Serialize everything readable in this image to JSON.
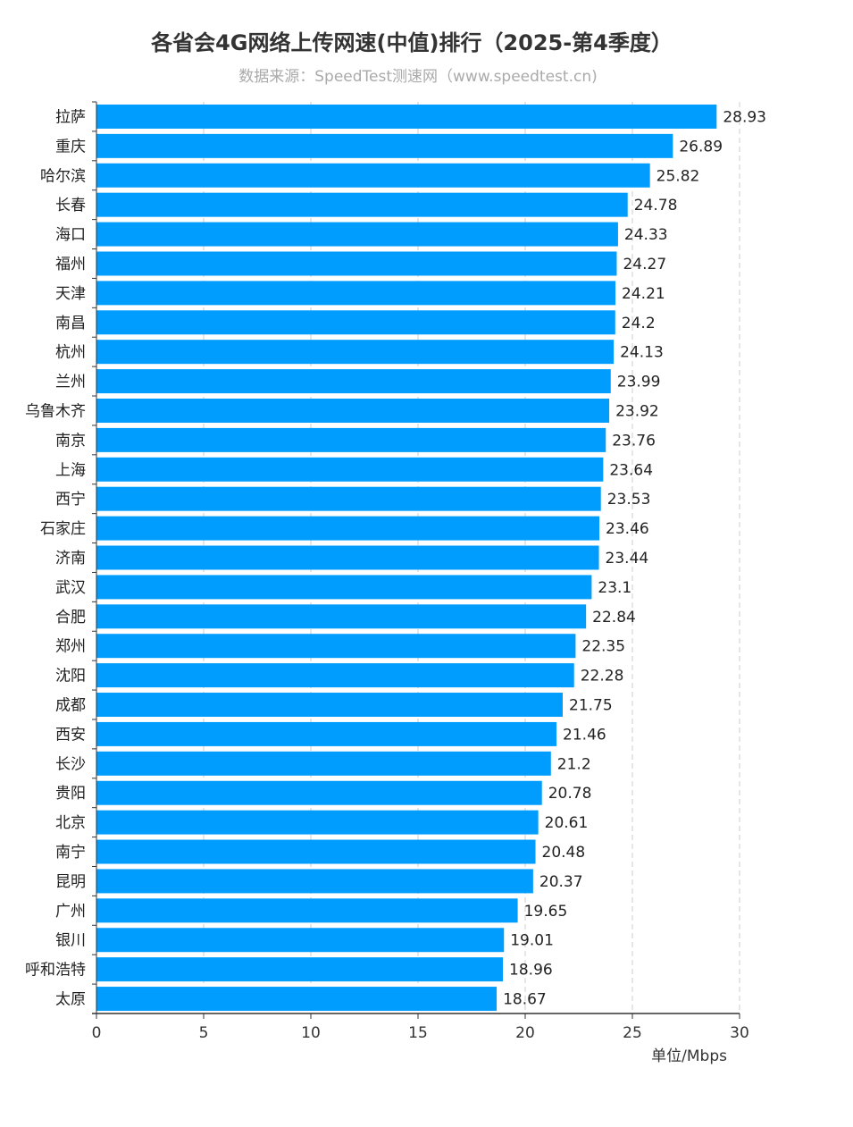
{
  "chart_data": {
    "type": "bar",
    "orientation": "horizontal",
    "title": "各省会4G网络上传网速(中值)排行（2025-第4季度）",
    "subtitle": "数据来源：SpeedTest测速网（www.speedtest.cn)",
    "xlabel": "单位/Mbps",
    "xlim": [
      0,
      30
    ],
    "xticks": [
      0,
      5,
      10,
      15,
      20,
      25,
      30
    ],
    "grid": "vertical dashed",
    "color": "#009dfe",
    "categories": [
      "拉萨",
      "重庆",
      "哈尔滨",
      "长春",
      "海口",
      "福州",
      "天津",
      "南昌",
      "杭州",
      "兰州",
      "乌鲁木齐",
      "南京",
      "上海",
      "西宁",
      "石家庄",
      "济南",
      "武汉",
      "合肥",
      "郑州",
      "沈阳",
      "成都",
      "西安",
      "长沙",
      "贵阳",
      "北京",
      "南宁",
      "昆明",
      "广州",
      "银川",
      "呼和浩特",
      "太原"
    ],
    "values": [
      28.93,
      26.89,
      25.82,
      24.78,
      24.33,
      24.27,
      24.21,
      24.2,
      24.13,
      23.99,
      23.92,
      23.76,
      23.64,
      23.53,
      23.46,
      23.44,
      23.1,
      22.84,
      22.35,
      22.28,
      21.75,
      21.46,
      21.2,
      20.78,
      20.61,
      20.48,
      20.37,
      19.65,
      19.01,
      18.96,
      18.67
    ]
  }
}
